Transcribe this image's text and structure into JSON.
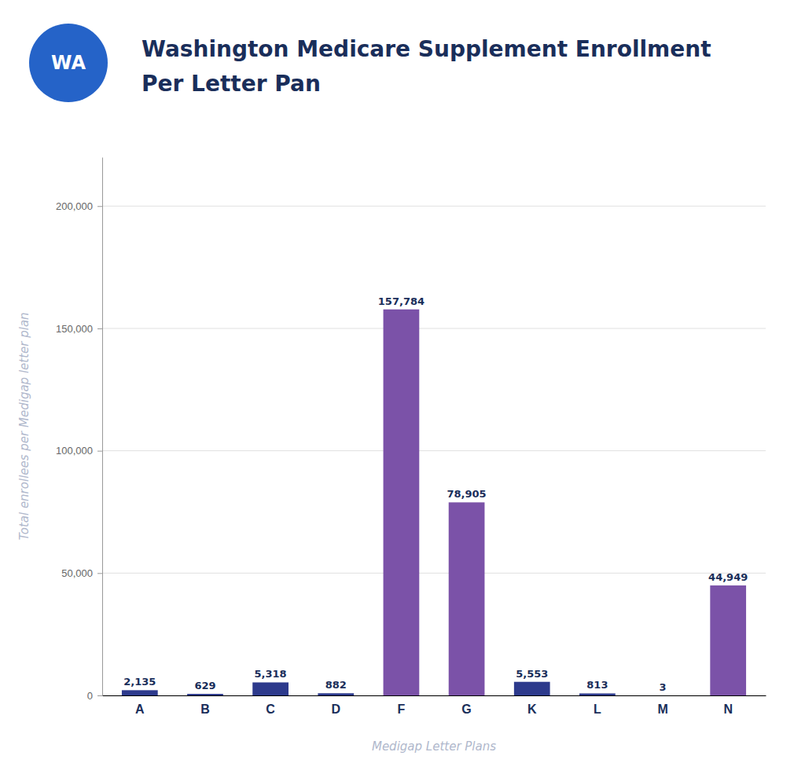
{
  "chart_data": {
    "type": "bar",
    "title": "Washington Medicare Supplement Enrollment",
    "subtitle": "Per Letter Pan",
    "annotations": [
      "WA"
    ],
    "xlabel": "Medigap Letter Plans",
    "ylabel": "Total enrollees per Medigap letter plan",
    "categories": [
      "A",
      "B",
      "C",
      "D",
      "F",
      "G",
      "K",
      "L",
      "M",
      "N"
    ],
    "values": [
      2135,
      629,
      5318,
      882,
      157784,
      78905,
      5553,
      813,
      3,
      44949
    ],
    "value_labels": [
      "2,135",
      "629",
      "5,318",
      "882",
      "157,784",
      "78,905",
      "5,553",
      "813",
      "3",
      "44,949"
    ],
    "colors": [
      "#2d3a8c",
      "#2d3a8c",
      "#2d3a8c",
      "#2d3a8c",
      "#7b52a8",
      "#7b52a8",
      "#2d3a8c",
      "#2d3a8c",
      "#2d3a8c",
      "#7b52a8"
    ],
    "ylim": [
      0,
      220000
    ],
    "yticks": [
      0,
      {
        "value": 50000,
        "label": "50,000"
      },
      {
        "value": 100000,
        "label": "100,000"
      },
      {
        "value": 150000,
        "label": "150,000"
      },
      {
        "value": 200000,
        "label": "200,000"
      }
    ],
    "grid": true,
    "data_labels": true
  }
}
